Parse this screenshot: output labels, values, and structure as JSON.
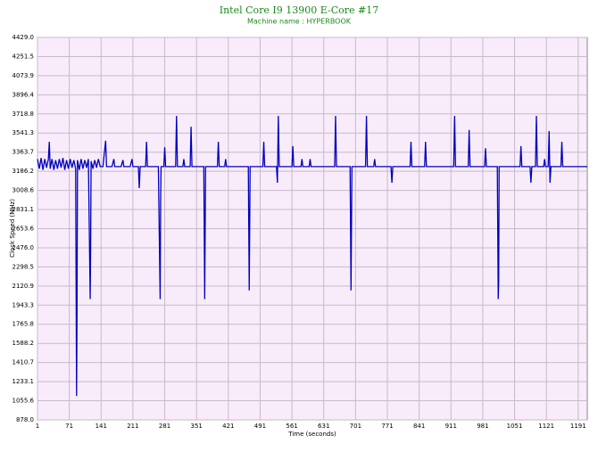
{
  "chart_data": {
    "type": "line",
    "title": "Intel Core I9 13900 E-Core #17",
    "subtitle": "Machine name : HYPERBOOK",
    "x_label": "Time (seconds)",
    "y_label": "Clock Speed (MHz)",
    "color": "#0000c0",
    "grid": true,
    "xlim": [
      1,
      1211
    ],
    "xticks": [
      1,
      71,
      141,
      211,
      281,
      351,
      421,
      491,
      561,
      631,
      701,
      771,
      841,
      911,
      981,
      1051,
      1121,
      1191
    ],
    "ylim": [
      878,
      4429
    ],
    "yticks": [
      {
        "value": 878,
        "label": "878.0"
      },
      1055.6,
      1233.1,
      1410.7,
      1588.2,
      1765.8,
      1943.3,
      2120.9,
      2298.5,
      {
        "value": 2476,
        "label": "2476.0"
      },
      2653.6,
      2831.1,
      3008.6,
      3186.2,
      3363.7,
      3541.3,
      3718.8,
      3896.4,
      4073.9,
      4251.5,
      {
        "value": 4429,
        "label": "4429.0"
      }
    ],
    "x": [
      1,
      5,
      9,
      13,
      17,
      21,
      25,
      27,
      29,
      33,
      37,
      41,
      45,
      49,
      53,
      57,
      61,
      65,
      69,
      73,
      77,
      81,
      85,
      87,
      88,
      89,
      93,
      97,
      101,
      105,
      109,
      113,
      117,
      118,
      119,
      123,
      127,
      131,
      135,
      139,
      145,
      151,
      153,
      165,
      169,
      171,
      185,
      189,
      191,
      205,
      209,
      211,
      223,
      225,
      227,
      239,
      241,
      243,
      267,
      271,
      272,
      273,
      279,
      281,
      283,
      305,
      307,
      309,
      321,
      323,
      325,
      337,
      339,
      341,
      367,
      369,
      371,
      397,
      399,
      401,
      413,
      415,
      417,
      465,
      467,
      469,
      497,
      499,
      501,
      527,
      529,
      531,
      533,
      561,
      563,
      565,
      581,
      583,
      585,
      599,
      601,
      603,
      655,
      657,
      659,
      689,
      691,
      693,
      723,
      725,
      727,
      741,
      743,
      745,
      779,
      781,
      783,
      821,
      823,
      825,
      853,
      855,
      857,
      917,
      919,
      921,
      949,
      951,
      953,
      985,
      987,
      989,
      1013,
      1015,
      1016,
      1017,
      1063,
      1065,
      1067,
      1085,
      1087,
      1089,
      1097,
      1099,
      1101,
      1115,
      1117,
      1119,
      1125,
      1127,
      1129,
      1131,
      1153,
      1155,
      1157,
      1211
    ],
    "values": [
      3300,
      3210,
      3310,
      3200,
      3300,
      3220,
      3300,
      3460,
      3210,
      3300,
      3200,
      3290,
      3210,
      3300,
      3220,
      3310,
      3200,
      3290,
      3210,
      3300,
      3220,
      3290,
      3210,
      1100,
      1850,
      3290,
      3200,
      3300,
      3210,
      3290,
      3220,
      3300,
      2000,
      2480,
      3280,
      3210,
      3290,
      3220,
      3300,
      3230,
      3230,
      3470,
      3230,
      3230,
      3300,
      3230,
      3230,
      3290,
      3230,
      3230,
      3300,
      3230,
      3230,
      3030,
      3230,
      3230,
      3460,
      3230,
      3230,
      2000,
      2900,
      3230,
      3230,
      3410,
      3230,
      3230,
      3700,
      3230,
      3230,
      3300,
      3230,
      3230,
      3600,
      3230,
      3230,
      2000,
      3230,
      3230,
      3460,
      3230,
      3230,
      3300,
      3230,
      3230,
      2080,
      3230,
      3230,
      3460,
      3230,
      3230,
      3080,
      3700,
      3230,
      3230,
      3420,
      3230,
      3230,
      3300,
      3230,
      3230,
      3300,
      3230,
      3230,
      3700,
      3230,
      3230,
      2080,
      3230,
      3230,
      3700,
      3230,
      3230,
      3300,
      3230,
      3230,
      3080,
      3230,
      3230,
      3460,
      3230,
      3230,
      3460,
      3230,
      3230,
      3700,
      3230,
      3230,
      3570,
      3230,
      3230,
      3400,
      3230,
      3230,
      2000,
      2150,
      3230,
      3230,
      3420,
      3230,
      3230,
      3080,
      3230,
      3230,
      3700,
      3230,
      3230,
      3300,
      3230,
      3230,
      3560,
      3080,
      3230,
      3230,
      3460,
      3230,
      3230
    ]
  }
}
